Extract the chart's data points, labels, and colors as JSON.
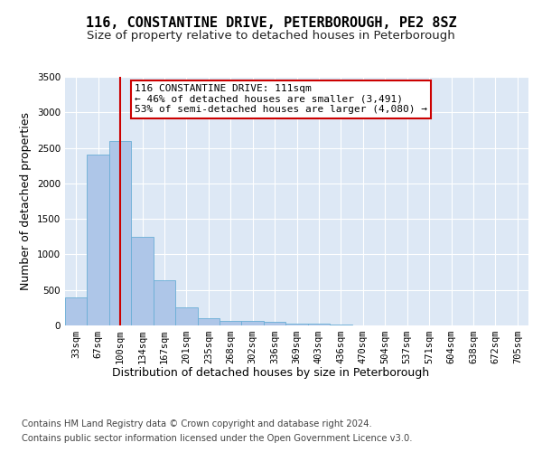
{
  "title": "116, CONSTANTINE DRIVE, PETERBOROUGH, PE2 8SZ",
  "subtitle": "Size of property relative to detached houses in Peterborough",
  "xlabel": "Distribution of detached houses by size in Peterborough",
  "ylabel": "Number of detached properties",
  "footer_line1": "Contains HM Land Registry data © Crown copyright and database right 2024.",
  "footer_line2": "Contains public sector information licensed under the Open Government Licence v3.0.",
  "bin_labels": [
    "33sqm",
    "67sqm",
    "100sqm",
    "134sqm",
    "167sqm",
    "201sqm",
    "235sqm",
    "268sqm",
    "302sqm",
    "336sqm",
    "369sqm",
    "403sqm",
    "436sqm",
    "470sqm",
    "504sqm",
    "537sqm",
    "571sqm",
    "604sqm",
    "638sqm",
    "672sqm",
    "705sqm"
  ],
  "bar_values": [
    390,
    2400,
    2600,
    1250,
    640,
    260,
    100,
    65,
    60,
    45,
    30,
    20,
    10,
    5,
    3,
    2,
    1,
    1,
    0,
    0,
    0
  ],
  "bar_color": "#aec6e8",
  "bar_edge_color": "#6aaed6",
  "red_line_x": 2.0,
  "annotation_text": "116 CONSTANTINE DRIVE: 111sqm\n← 46% of detached houses are smaller (3,491)\n53% of semi-detached houses are larger (4,080) →",
  "annotation_box_color": "#ffffff",
  "annotation_box_edge": "#cc0000",
  "annotation_text_color": "#000000",
  "red_line_color": "#cc0000",
  "ylim": [
    0,
    3500
  ],
  "yticks": [
    0,
    500,
    1000,
    1500,
    2000,
    2500,
    3000,
    3500
  ],
  "background_color": "#dde8f5",
  "grid_color": "#ffffff",
  "title_fontsize": 11,
  "subtitle_fontsize": 9.5,
  "ylabel_fontsize": 9,
  "xlabel_fontsize": 9,
  "tick_fontsize": 7.5,
  "footer_fontsize": 7.2,
  "annotation_fontsize": 8
}
